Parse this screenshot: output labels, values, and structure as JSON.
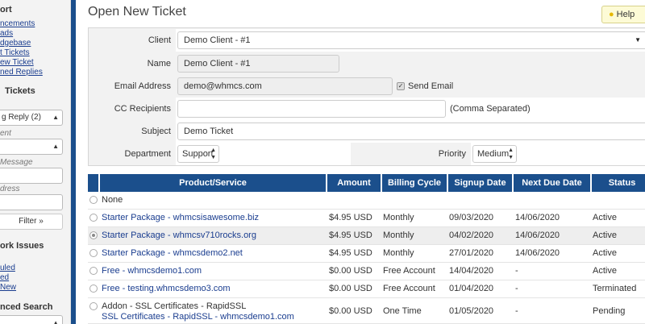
{
  "sidebar": {
    "support_heading": "ort",
    "links": [
      "ncements",
      "ads",
      "dgebase",
      "t Tickets",
      "ew Ticket",
      "ned Replies"
    ],
    "tickets_heading": "Tickets",
    "status_select": "g Reply (2)",
    "client_label": "ent",
    "message_label": "Message",
    "address_label": "dress",
    "filter_button": "Filter »",
    "network_heading": "ork Issues",
    "network_links": [
      "uled",
      "ed",
      "New"
    ],
    "advanced_heading": "nced Search"
  },
  "page": {
    "title": "Open New Ticket",
    "help_label": "Help"
  },
  "form": {
    "client_label": "Client",
    "client_value": "Demo Client - #1",
    "name_label": "Name",
    "name_value": "Demo Client - #1",
    "email_label": "Email Address",
    "email_value": "demo@whmcs.com",
    "send_email_label": "Send Email",
    "send_email_checked": true,
    "cc_label": "CC Recipients",
    "cc_value": "",
    "cc_note": "(Comma Separated)",
    "subject_label": "Subject",
    "subject_value": "Demo Ticket",
    "department_label": "Department",
    "department_value": "Support",
    "priority_label": "Priority",
    "priority_value": "Medium"
  },
  "table": {
    "headers": [
      "Product/Service",
      "Amount",
      "Billing Cycle",
      "Signup Date",
      "Next Due Date",
      "Status"
    ],
    "none_label": "None",
    "rows": [
      {
        "product": "Starter Package - whmcsisawesome.biz",
        "amount": "$4.95 USD",
        "cycle": "Monthly",
        "signup": "09/03/2020",
        "due": "14/06/2020",
        "status": "Active",
        "selected": false
      },
      {
        "product": "Starter Package - whmcsv710rocks.org",
        "amount": "$4.95 USD",
        "cycle": "Monthly",
        "signup": "04/02/2020",
        "due": "14/06/2020",
        "status": "Active",
        "selected": true
      },
      {
        "product": "Starter Package - whmcsdemo2.net",
        "amount": "$4.95 USD",
        "cycle": "Monthly",
        "signup": "27/01/2020",
        "due": "14/06/2020",
        "status": "Active",
        "selected": false
      },
      {
        "product": "Free - whmcsdemo1.com",
        "amount": "$0.00 USD",
        "cycle": "Free Account",
        "signup": "14/04/2020",
        "due": "-",
        "status": "Active",
        "selected": false
      },
      {
        "product": "Free - testing.whmcsdemo3.com",
        "amount": "$0.00 USD",
        "cycle": "Free Account",
        "signup": "01/04/2020",
        "due": "-",
        "status": "Terminated",
        "selected": false
      },
      {
        "product": "Addon - SSL Certificates - RapidSSL",
        "product_line2": "SSL Certificates - RapidSSL - whmcsdemo1.com",
        "amount": "$0.00 USD",
        "cycle": "One Time",
        "signup": "01/05/2020",
        "due": "-",
        "status": "Pending",
        "selected": false
      }
    ]
  },
  "colors": {
    "header_blue": "#1b4f8c",
    "link_blue": "#1a3d8f"
  }
}
